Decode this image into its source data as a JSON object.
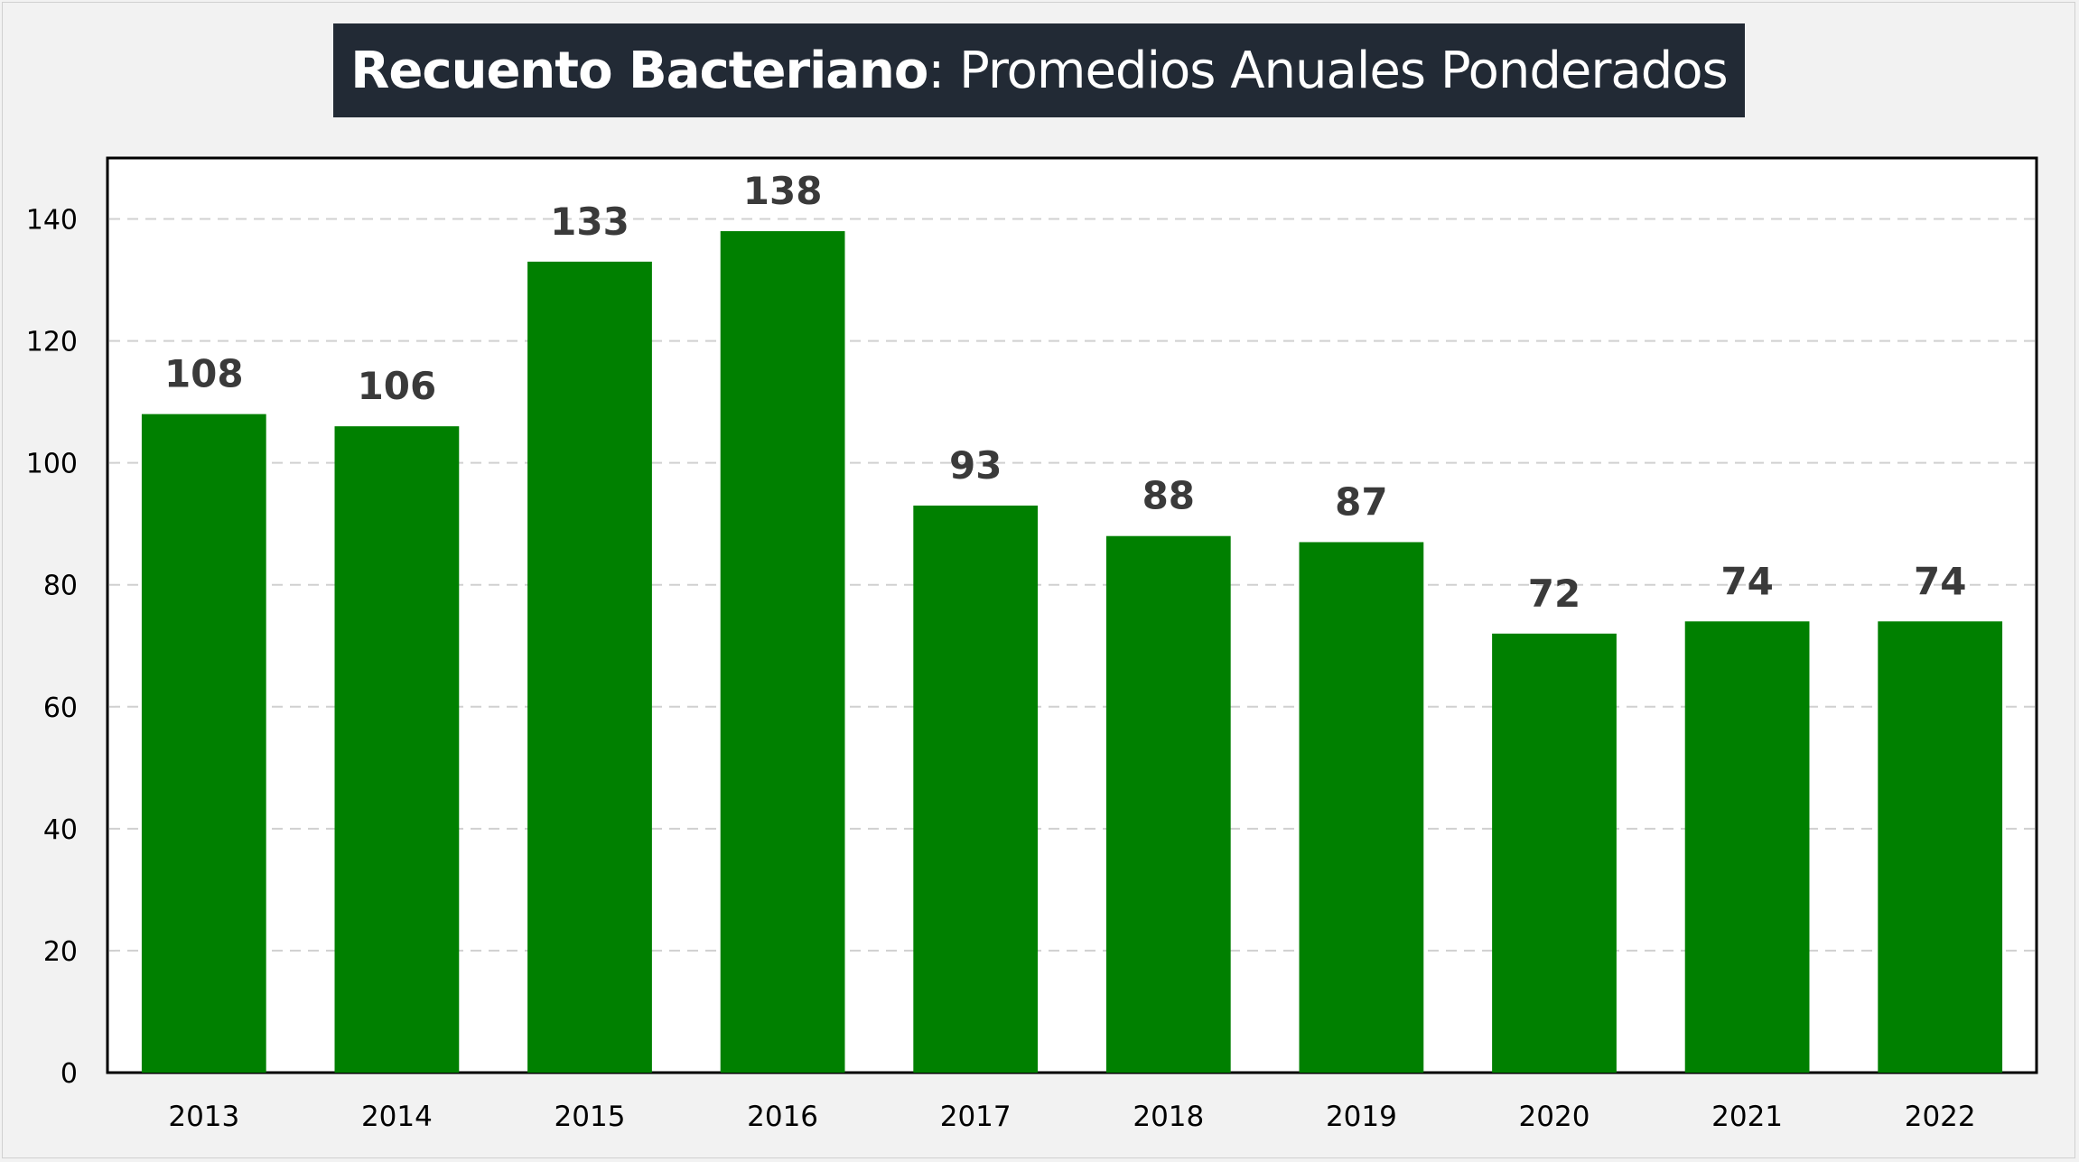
{
  "title": {
    "bold_part": "Recuento Bacteriano",
    "regular_part": ": Promedios Anuales Ponderados",
    "background": "#222a35",
    "color": "#ffffff"
  },
  "chart_data": {
    "type": "bar",
    "title": "Recuento Bacteriano: Promedios Anuales Ponderados",
    "xlabel": "",
    "ylabel": "",
    "categories": [
      "2013",
      "2014",
      "2015",
      "2016",
      "2017",
      "2018",
      "2019",
      "2020",
      "2021",
      "2022"
    ],
    "values": [
      108,
      106,
      133,
      138,
      93,
      88,
      87,
      72,
      74,
      74
    ],
    "data_labels": [
      "108",
      "106",
      "133",
      "138",
      "93",
      "88",
      "87",
      "72",
      "74",
      "74"
    ],
    "ylim": [
      0,
      150
    ],
    "yticks": [
      0,
      20,
      40,
      60,
      80,
      100,
      120,
      140
    ],
    "grid": true,
    "grid_style": "dashed",
    "legend": "none",
    "bar_color": "#008000"
  }
}
